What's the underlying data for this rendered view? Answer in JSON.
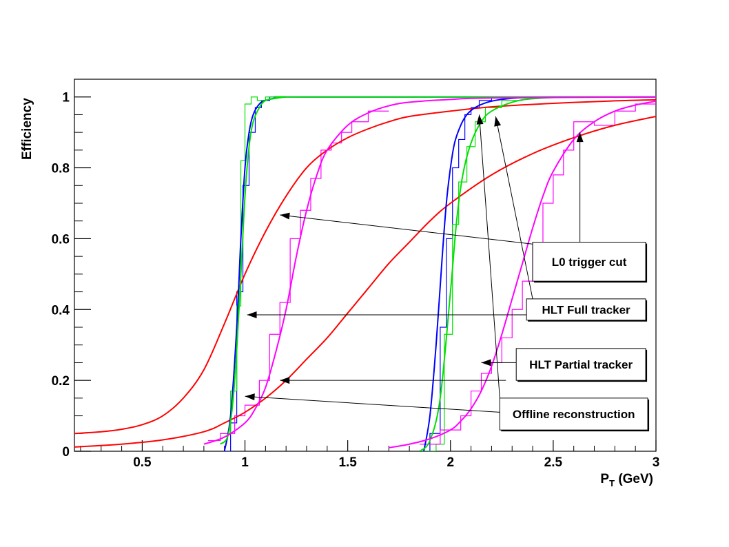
{
  "chart_data": {
    "type": "line",
    "title": "",
    "xlabel_main": "P",
    "xlabel_sub": "T",
    "xlabel_unit": " (GeV)",
    "ylabel": "Efficiency",
    "xlim": [
      0.17,
      3.0
    ],
    "ylim": [
      0,
      1.05
    ],
    "x_ticks": [
      0.5,
      1,
      1.5,
      2,
      2.5,
      3
    ],
    "x_tick_labels": [
      "0.5",
      "1",
      "1.5",
      "2",
      "2.5",
      "3"
    ],
    "y_ticks": [
      0,
      0.2,
      0.4,
      0.6,
      0.8,
      1
    ],
    "y_tick_labels": [
      "0",
      "0.2",
      "0.4",
      "0.6",
      "0.8",
      "1"
    ],
    "grid": false,
    "series": [
      {
        "color": "#ff0000",
        "x": [
          0.17,
          0.3,
          0.4,
          0.5,
          0.6,
          0.7,
          0.8,
          0.9,
          1.0,
          1.1,
          1.2,
          1.3,
          1.4,
          1.5,
          1.6,
          1.7,
          1.8,
          2.0,
          2.2,
          2.5,
          2.8,
          3.0
        ],
        "y": [
          0.05,
          0.055,
          0.062,
          0.075,
          0.1,
          0.15,
          0.23,
          0.36,
          0.5,
          0.62,
          0.72,
          0.8,
          0.85,
          0.885,
          0.91,
          0.93,
          0.945,
          0.96,
          0.972,
          0.982,
          0.989,
          0.992
        ]
      },
      {
        "color": "#ff0000",
        "x": [
          0.17,
          0.4,
          0.6,
          0.8,
          0.9,
          1.0,
          1.1,
          1.2,
          1.3,
          1.4,
          1.5,
          1.6,
          1.7,
          1.8,
          1.9,
          2.0,
          2.2,
          2.4,
          2.6,
          2.8,
          3.0
        ],
        "y": [
          0.012,
          0.02,
          0.032,
          0.055,
          0.08,
          0.11,
          0.15,
          0.2,
          0.26,
          0.32,
          0.39,
          0.46,
          0.53,
          0.59,
          0.65,
          0.7,
          0.78,
          0.84,
          0.885,
          0.92,
          0.945
        ]
      },
      {
        "color": "#0000ff",
        "x": [
          0.9,
          0.93,
          0.96,
          0.98,
          1.0,
          1.02,
          1.04,
          1.07,
          1.1,
          1.15,
          1.2,
          1.3,
          3.0
        ],
        "y": [
          0.0,
          0.1,
          0.35,
          0.6,
          0.8,
          0.9,
          0.95,
          0.98,
          0.99,
          0.997,
          1.0,
          1.0,
          1.0
        ]
      },
      {
        "color": "#0000ff",
        "x": [
          1.87,
          1.9,
          1.93,
          1.96,
          1.98,
          2.0,
          2.02,
          2.05,
          2.08,
          2.12,
          2.18,
          2.25,
          2.35,
          2.5,
          3.0
        ],
        "y": [
          0.0,
          0.1,
          0.3,
          0.55,
          0.7,
          0.8,
          0.87,
          0.92,
          0.95,
          0.97,
          0.985,
          0.993,
          0.998,
          1.0,
          1.0
        ]
      },
      {
        "color": "#00e000",
        "x": [
          0.88,
          0.92,
          0.95,
          0.98,
          1.0,
          1.02,
          1.04,
          1.07,
          1.1,
          1.15,
          1.2,
          1.3,
          3.0
        ],
        "y": [
          0.02,
          0.05,
          0.2,
          0.5,
          0.72,
          0.86,
          0.93,
          0.97,
          0.99,
          0.996,
          1.0,
          1.0,
          1.0
        ]
      },
      {
        "color": "#00e000",
        "x": [
          1.85,
          1.9,
          1.95,
          2.0,
          2.03,
          2.06,
          2.1,
          2.15,
          2.2,
          2.3,
          2.4,
          2.6,
          3.0
        ],
        "y": [
          0.0,
          0.03,
          0.15,
          0.45,
          0.65,
          0.78,
          0.87,
          0.93,
          0.96,
          0.985,
          0.995,
          1.0,
          1.0
        ]
      },
      {
        "color": "#ff00ff",
        "x": [
          0.8,
          0.9,
          1.0,
          1.05,
          1.1,
          1.15,
          1.2,
          1.25,
          1.3,
          1.35,
          1.4,
          1.5,
          1.6,
          1.7,
          1.8,
          2.0,
          2.2,
          3.0
        ],
        "y": [
          0.02,
          0.04,
          0.08,
          0.12,
          0.18,
          0.28,
          0.4,
          0.55,
          0.68,
          0.78,
          0.85,
          0.92,
          0.955,
          0.975,
          0.985,
          0.993,
          0.997,
          1.0
        ]
      },
      {
        "color": "#ff00ff",
        "x": [
          1.7,
          1.8,
          1.9,
          2.0,
          2.05,
          2.1,
          2.15,
          2.2,
          2.25,
          2.3,
          2.35,
          2.4,
          2.45,
          2.5,
          2.6,
          2.7,
          2.8,
          2.9,
          3.0
        ],
        "y": [
          0.01,
          0.02,
          0.035,
          0.06,
          0.085,
          0.12,
          0.17,
          0.24,
          0.33,
          0.43,
          0.53,
          0.63,
          0.72,
          0.79,
          0.88,
          0.93,
          0.96,
          0.977,
          0.988
        ]
      }
    ],
    "histograms": [
      {
        "color": "#0000ff",
        "edges": [
          0.9,
          0.93,
          0.96,
          0.99,
          1.02,
          1.05,
          1.08,
          1.12,
          1.16,
          1.25
        ],
        "values": [
          0.0,
          0.08,
          0.45,
          0.75,
          0.9,
          0.97,
          0.99,
          1.0,
          1.0
        ]
      },
      {
        "color": "#0000ff",
        "edges": [
          1.85,
          1.9,
          1.95,
          1.98,
          2.01,
          2.04,
          2.07,
          2.1,
          2.14,
          2.2,
          2.3
        ],
        "values": [
          0.0,
          0.05,
          0.35,
          0.6,
          0.8,
          0.88,
          0.95,
          0.97,
          0.99,
          1.0
        ]
      },
      {
        "color": "#00e000",
        "edges": [
          0.88,
          0.93,
          0.96,
          0.98,
          1.0,
          1.03,
          1.06,
          1.1,
          1.15,
          1.3
        ],
        "values": [
          0.05,
          0.17,
          0.41,
          0.82,
          0.98,
          1.0,
          0.99,
          1.0,
          1.0
        ]
      },
      {
        "color": "#00e000",
        "edges": [
          1.85,
          1.93,
          1.97,
          2.01,
          2.04,
          2.08,
          2.12,
          2.17,
          2.25,
          2.35
        ],
        "values": [
          0.0,
          0.02,
          0.33,
          0.64,
          0.76,
          0.86,
          0.93,
          0.97,
          0.99
        ]
      },
      {
        "color": "#ff00ff",
        "edges": [
          0.82,
          0.88,
          0.95,
          1.0,
          1.07,
          1.12,
          1.17,
          1.22,
          1.27,
          1.32,
          1.37,
          1.42,
          1.47,
          1.52,
          1.6,
          1.7
        ],
        "values": [
          0.03,
          0.05,
          0.1,
          0.13,
          0.2,
          0.33,
          0.42,
          0.6,
          0.68,
          0.77,
          0.85,
          0.87,
          0.9,
          0.93,
          0.96
        ]
      },
      {
        "color": "#ff00ff",
        "edges": [
          1.85,
          1.95,
          2.05,
          2.1,
          2.15,
          2.2,
          2.25,
          2.3,
          2.35,
          2.4,
          2.45,
          2.5,
          2.55,
          2.6,
          2.7,
          2.8,
          2.9,
          3.0
        ],
        "values": [
          0.02,
          0.06,
          0.1,
          0.17,
          0.22,
          0.25,
          0.32,
          0.4,
          0.48,
          0.58,
          0.7,
          0.78,
          0.85,
          0.93,
          0.92,
          0.96,
          0.98
        ]
      }
    ],
    "annotations": [
      {
        "text": "L0 trigger cut",
        "box": {
          "x1": 2.4,
          "x2": 2.95,
          "y1": 0.48,
          "y2": 0.59
        },
        "arrows": [
          {
            "from": [
              2.47,
              0.58
            ],
            "to": [
              1.17,
              0.667
            ]
          },
          {
            "from": [
              2.63,
              0.58
            ],
            "to": [
              2.63,
              0.9
            ]
          }
        ]
      },
      {
        "text": "HLT Full tracker",
        "box": {
          "x1": 2.37,
          "x2": 2.95,
          "y1": 0.37,
          "y2": 0.43
        },
        "arrows": [
          {
            "from": [
              2.37,
              0.385
            ],
            "to": [
              1.01,
              0.385
            ]
          },
          {
            "from": [
              2.4,
              0.43
            ],
            "to": [
              2.22,
              0.945
            ]
          }
        ]
      },
      {
        "text": "HLT Partial tracker",
        "box": {
          "x1": 2.32,
          "x2": 2.95,
          "y1": 0.2,
          "y2": 0.29
        },
        "arrows": [
          {
            "from": [
              2.32,
              0.25
            ],
            "to": [
              2.15,
              0.25
            ]
          }
        ]
      },
      {
        "text": "Offline reconstruction",
        "box": {
          "x1": 2.24,
          "x2": 2.96,
          "y1": 0.06,
          "y2": 0.15
        },
        "arrows": [
          {
            "from": [
              2.24,
              0.11
            ],
            "to": [
              1.0,
              0.155
            ]
          },
          {
            "from": [
              2.27,
              0.2
            ],
            "to": [
              1.17,
              0.2
            ]
          },
          {
            "from": [
              2.24,
              0.15
            ],
            "to": [
              2.14,
              0.95
            ]
          }
        ]
      }
    ]
  }
}
